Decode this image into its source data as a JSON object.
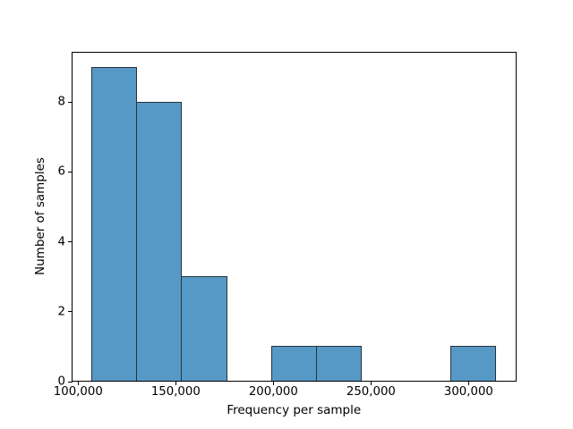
{
  "chart_data": {
    "type": "histogram",
    "title": "",
    "xlabel": "Frequency per sample",
    "ylabel": "Number of samples",
    "bin_edges": [
      107000,
      130000,
      153000,
      176000,
      199000,
      222000,
      245000,
      268000,
      291000,
      314000
    ],
    "counts": [
      9,
      8,
      3,
      0,
      1,
      1,
      0,
      0,
      1
    ],
    "xlim": [
      96650,
      324350
    ],
    "ylim": [
      0,
      9.45
    ],
    "xticks": {
      "values": [
        100000,
        150000,
        200000,
        250000,
        300000
      ],
      "labels": [
        "100,000",
        "150,000",
        "200,000",
        "250,000",
        "300,000"
      ]
    },
    "yticks": {
      "values": [
        0,
        2,
        4,
        6,
        8
      ],
      "labels": [
        "0",
        "2",
        "4",
        "6",
        "8"
      ]
    },
    "grid": false,
    "legend": "none",
    "colors": {
      "bar_fill": "#5799c6",
      "bar_edge": "#27313a",
      "axis": "#000000",
      "text": "#000000",
      "background": "#ffffff"
    }
  }
}
